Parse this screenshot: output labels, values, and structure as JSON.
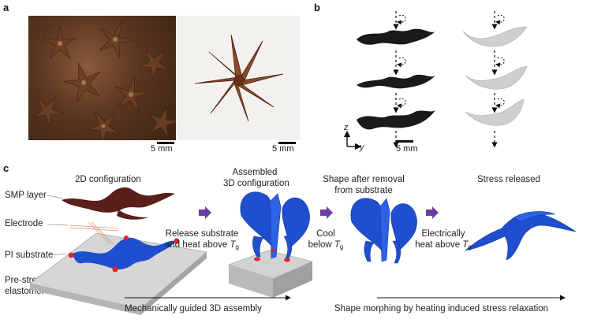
{
  "panels": {
    "a": "a",
    "b": "b",
    "c": "c"
  },
  "panel_a": {
    "scale_left": "5 mm",
    "scale_right": "5 mm"
  },
  "panel_b": {
    "axis_z": "z",
    "axis_y": "y",
    "scale": "5 mm"
  },
  "panel_c": {
    "title_2d": "2D configuration",
    "title_assembled_1": "Assembled",
    "title_assembled_2": "3D configuration",
    "title_removal_1": "Shape after removal",
    "title_removal_2": "from substrate",
    "title_released": "Stress released",
    "layer_smp": "SMP layer",
    "layer_electrode": "Electrode",
    "layer_pi": "PI substrate",
    "layer_elastomer_1": "Pre-stretched",
    "layer_elastomer_2": "elastomer",
    "step1_line1": "Release substrate",
    "step1_line2": "and heat above",
    "step2_line1": "Cool",
    "step2_line2": "below",
    "step3_line1": "Electrically",
    "step3_line2": "heat above",
    "tg_symbol": "T",
    "tg_sub": "g",
    "footer_left": "Mechanically guided 3D assembly",
    "footer_right": "Shape morphing by heating induced stress relaxation"
  },
  "colors": {
    "smp_brown": "#5a1f1a",
    "pi_blue": "#1f4fcf",
    "arrow_purple": "#6a3ea1",
    "substrate_gray": "#c9c9c9",
    "sim_black": "#1a1a1a",
    "sim_gray": "#cfcfcf"
  }
}
